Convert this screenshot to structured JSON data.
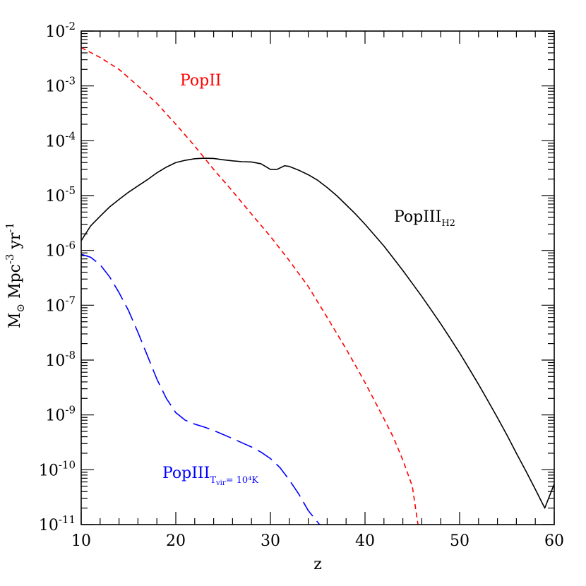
{
  "chart_data": {
    "type": "line",
    "title": "",
    "xlabel": "z",
    "ylabel_parts": {
      "symbol": "M",
      "sun": "⊙",
      "unit1": "Mpc",
      "exp1": "-3",
      "unit2": "yr",
      "exp2": "-1"
    },
    "xlim": [
      10,
      60
    ],
    "ylim": [
      1e-11,
      0.01
    ],
    "yscale": "log",
    "grid": false,
    "x_ticks": [
      "10",
      "20",
      "30",
      "40",
      "50",
      "60"
    ],
    "y_ticks": [
      {
        "base": "10",
        "exp": "-2"
      },
      {
        "base": "10",
        "exp": "-3"
      },
      {
        "base": "10",
        "exp": "-4"
      },
      {
        "base": "10",
        "exp": "-5"
      },
      {
        "base": "10",
        "exp": "-6"
      },
      {
        "base": "10",
        "exp": "-7"
      },
      {
        "base": "10",
        "exp": "-8"
      },
      {
        "base": "10",
        "exp": "-9"
      },
      {
        "base": "10",
        "exp": "-10"
      },
      {
        "base": "10",
        "exp": "-11"
      }
    ],
    "series": [
      {
        "label": {
          "main": "PopIII",
          "sub": "H2"
        },
        "color": "#000000",
        "dash": "solid",
        "points": [
          [
            10,
            1.5e-06
          ],
          [
            11,
            2.8e-06
          ],
          [
            12,
            4.2e-06
          ],
          [
            13,
            6.2e-06
          ],
          [
            14,
            8.5e-06
          ],
          [
            15,
            1.15e-05
          ],
          [
            16,
            1.5e-05
          ],
          [
            17,
            1.95e-05
          ],
          [
            18,
            2.6e-05
          ],
          [
            19,
            3.3e-05
          ],
          [
            20,
            4e-05
          ],
          [
            21,
            4.4e-05
          ],
          [
            22,
            4.7e-05
          ],
          [
            23,
            4.8e-05
          ],
          [
            24,
            4.75e-05
          ],
          [
            25,
            4.5e-05
          ],
          [
            26,
            4.3e-05
          ],
          [
            27,
            4.15e-05
          ],
          [
            28,
            4.1e-05
          ],
          [
            29,
            3.8e-05
          ],
          [
            30,
            3e-05
          ],
          [
            30.7,
            3e-05
          ],
          [
            31.5,
            3.5e-05
          ],
          [
            32,
            3.4e-05
          ],
          [
            33,
            2.9e-05
          ],
          [
            34,
            2.4e-05
          ],
          [
            35,
            1.9e-05
          ],
          [
            36,
            1.4e-05
          ],
          [
            37,
            1e-05
          ],
          [
            38,
            6.8e-06
          ],
          [
            39,
            4.6e-06
          ],
          [
            40,
            3e-06
          ],
          [
            41,
            1.9e-06
          ],
          [
            42,
            1.2e-06
          ],
          [
            43,
            7.2e-07
          ],
          [
            44,
            4.3e-07
          ],
          [
            45,
            2.5e-07
          ],
          [
            46,
            1.45e-07
          ],
          [
            47,
            8.2e-08
          ],
          [
            48,
            4.6e-08
          ],
          [
            49,
            2.5e-08
          ],
          [
            50,
            1.35e-08
          ],
          [
            51,
            7e-09
          ],
          [
            52,
            3.6e-09
          ],
          [
            53,
            1.8e-09
          ],
          [
            54,
            8.9e-10
          ],
          [
            55,
            4.3e-10
          ],
          [
            56,
            2e-10
          ],
          [
            57,
            9.5e-11
          ],
          [
            58,
            4.4e-11
          ],
          [
            59,
            2e-11
          ],
          [
            60,
            5.5e-11
          ]
        ]
      },
      {
        "label": {
          "main": "PopII",
          "sub": ""
        },
        "color": "#ff0000",
        "dash": "short",
        "points": [
          [
            10,
            0.005
          ],
          [
            12,
            0.0033
          ],
          [
            14,
            0.002
          ],
          [
            16,
            0.001
          ],
          [
            18,
            0.00048
          ],
          [
            20,
            0.0002
          ],
          [
            22,
            8e-05
          ],
          [
            24,
            3e-05
          ],
          [
            26,
            1.2e-05
          ],
          [
            28,
            4.6e-06
          ],
          [
            30,
            1.8e-06
          ],
          [
            32,
            6.5e-07
          ],
          [
            34,
            2.2e-07
          ],
          [
            36,
            6e-08
          ],
          [
            38,
            1.6e-08
          ],
          [
            40,
            3.9e-09
          ],
          [
            42,
            8.5e-10
          ],
          [
            43,
            3.9e-10
          ],
          [
            44,
            1.5e-10
          ],
          [
            45,
            5e-11
          ],
          [
            45.6,
            1e-11
          ]
        ]
      },
      {
        "label": {
          "main": "PopIII",
          "sub": "T",
          "subsub": "vir",
          "sub_tail": "= 10⁴K"
        },
        "color": "#0000ff",
        "dash": "long",
        "points": [
          [
            10,
            8.5e-07
          ],
          [
            11,
            7.5e-07
          ],
          [
            12,
            5.5e-07
          ],
          [
            13,
            3.3e-07
          ],
          [
            14,
            1.7e-07
          ],
          [
            15,
            8e-08
          ],
          [
            16,
            3.2e-08
          ],
          [
            17,
            1.2e-08
          ],
          [
            18,
            4.5e-09
          ],
          [
            19,
            2e-09
          ],
          [
            20,
            1.1e-09
          ],
          [
            21,
            8e-10
          ],
          [
            22,
            6.8e-10
          ],
          [
            23,
            6e-10
          ],
          [
            24,
            5.2e-10
          ],
          [
            25,
            4.4e-10
          ],
          [
            26,
            3.7e-10
          ],
          [
            27,
            3.1e-10
          ],
          [
            28,
            2.6e-10
          ],
          [
            29,
            2.1e-10
          ],
          [
            30,
            1.6e-10
          ],
          [
            31,
            1.1e-10
          ],
          [
            32,
            6.5e-11
          ],
          [
            33,
            3.6e-11
          ],
          [
            34,
            1.8e-11
          ],
          [
            35.2,
            1e-11
          ]
        ]
      }
    ]
  }
}
